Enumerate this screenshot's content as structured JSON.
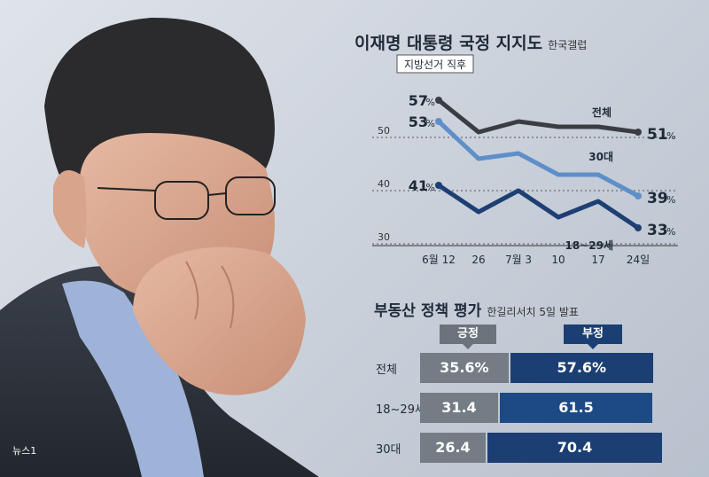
{
  "credit": "뉴스1",
  "colors": {
    "total": "#3a3e44",
    "age30": "#5f8fc8",
    "age18_29": "#1d3f73",
    "positive": "#747c86",
    "negative": "#1b3f73"
  },
  "chart_data": [
    {
      "type": "line",
      "title": "이재명 대통령 국정 지지도",
      "source": "한국갤럽",
      "annotation": "지방선거 직후",
      "categories": [
        "6월 12",
        "26",
        "7월 3",
        "10",
        "17",
        "24일"
      ],
      "yticks": [
        "50",
        "40",
        "30"
      ],
      "ylim": [
        30,
        60
      ],
      "series": [
        {
          "name": "전체",
          "values": [
            57,
            51,
            53,
            52,
            52,
            51
          ],
          "start_label": "57",
          "end_label": "51"
        },
        {
          "name": "30대",
          "values": [
            53,
            46,
            47,
            43,
            43,
            39
          ],
          "start_label": "53",
          "end_label": "39"
        },
        {
          "name": "18~29세",
          "values": [
            41,
            36,
            40,
            35,
            38,
            33
          ],
          "start_label": "41",
          "end_label": "33"
        }
      ],
      "unit": "%"
    },
    {
      "type": "bar",
      "title": "부동산 정책 평가",
      "source": "한길리서치 5일 발표",
      "legend": [
        "긍정",
        "부정"
      ],
      "rows": [
        {
          "label": "전체",
          "positive": 35.6,
          "negative": 57.6,
          "positive_label": "35.6%",
          "negative_label": "57.6%"
        },
        {
          "label": "18~29세",
          "positive": 31.4,
          "negative": 61.5,
          "positive_label": "31.4",
          "negative_label": "61.5"
        },
        {
          "label": "30대",
          "positive": 26.4,
          "negative": 70.4,
          "positive_label": "26.4",
          "negative_label": "70.4"
        }
      ]
    }
  ]
}
